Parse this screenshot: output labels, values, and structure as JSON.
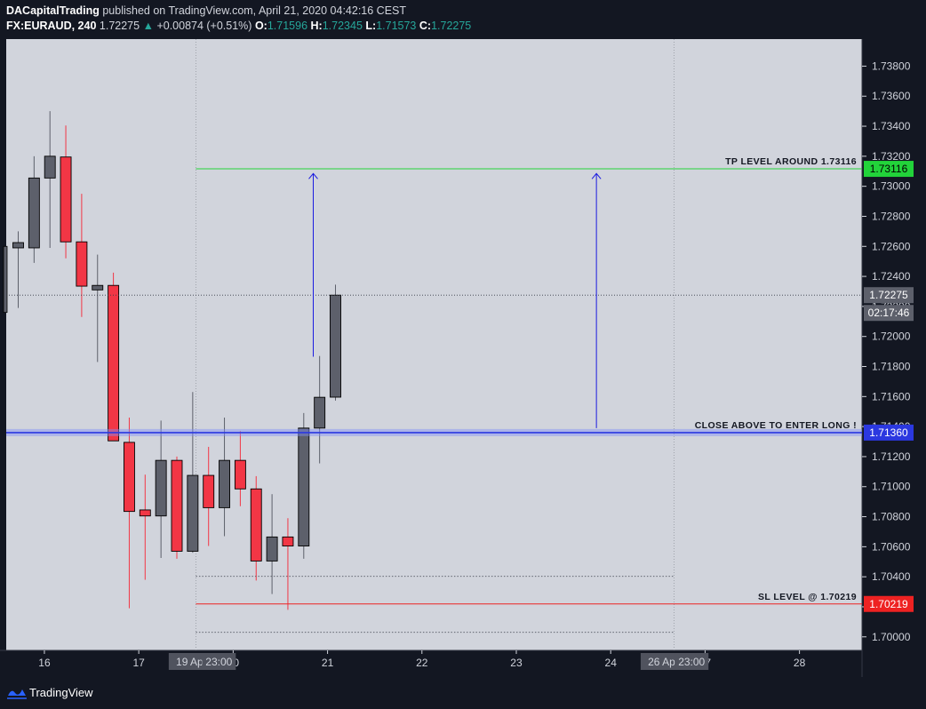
{
  "header": {
    "author": "DACapitalTrading",
    "published_text": "published on TradingView.com, April 21, 2020 04:42:16 CEST",
    "symbol": "FX:EURAUD, 240",
    "last": "1.72275",
    "change": "+0.00874 (+0.51%)",
    "o_label": "O:",
    "o_value": "1.71596",
    "h_label": "H:",
    "h_value": "1.72345",
    "l_label": "L:",
    "l_value": "1.71573",
    "c_label": "C:",
    "c_value": "1.72275"
  },
  "chart_data": {
    "type": "candlestick",
    "ylim": [
      1.6991,
      1.7398
    ],
    "y_ticks": [
      "1.70000",
      "1.70200",
      "1.70400",
      "1.70600",
      "1.70800",
      "1.71000",
      "1.71200",
      "1.71400",
      "1.71600",
      "1.71800",
      "1.72000",
      "1.72200",
      "1.72400",
      "1.72600",
      "1.72800",
      "1.73000",
      "1.73200",
      "1.73400",
      "1.73600",
      "1.73800"
    ],
    "x_ticks": [
      "16",
      "17",
      "20",
      "21",
      "22",
      "23",
      "24",
      "27",
      "28"
    ],
    "x_tick_slots": [
      1.65,
      7.6,
      13.55,
      19.5,
      25.45,
      31.4,
      37.35,
      43.3,
      49.25
    ],
    "x_highlight_labels": [
      {
        "label": "19 Apr '20",
        "slot": 11.45
      },
      {
        "label": "23:00",
        "slot": 12.65
      },
      {
        "label": "26 Apr '20",
        "slot": 41.2
      },
      {
        "label": "23:00",
        "slot": 42.45
      }
    ],
    "candles": [
      {
        "o": 1.7259,
        "h": 1.727,
        "l": 1.7219,
        "c": 1.72625
      },
      {
        "o": 1.7259,
        "h": 1.732,
        "l": 1.7249,
        "c": 1.73055
      },
      {
        "o": 1.73055,
        "h": 1.735,
        "l": 1.7259,
        "c": 1.732
      },
      {
        "o": 1.73195,
        "h": 1.73405,
        "l": 1.7252,
        "c": 1.7263
      },
      {
        "o": 1.7263,
        "h": 1.7295,
        "l": 1.7213,
        "c": 1.72335
      },
      {
        "o": 1.7231,
        "h": 1.72545,
        "l": 1.7183,
        "c": 1.7234
      },
      {
        "o": 1.7234,
        "h": 1.72425,
        "l": 1.7131,
        "c": 1.71305
      },
      {
        "o": 1.71295,
        "h": 1.7146,
        "l": 1.7019,
        "c": 1.70835
      },
      {
        "o": 1.70845,
        "h": 1.7108,
        "l": 1.7038,
        "c": 1.70805
      },
      {
        "o": 1.70805,
        "h": 1.7144,
        "l": 1.70525,
        "c": 1.71175
      },
      {
        "o": 1.71175,
        "h": 1.712,
        "l": 1.7052,
        "c": 1.7057
      },
      {
        "o": 1.7057,
        "h": 1.7163,
        "l": 1.7056,
        "c": 1.71075
      },
      {
        "o": 1.71075,
        "h": 1.71265,
        "l": 1.70605,
        "c": 1.7086
      },
      {
        "o": 1.7086,
        "h": 1.7146,
        "l": 1.7067,
        "c": 1.71175
      },
      {
        "o": 1.71175,
        "h": 1.7137,
        "l": 1.7087,
        "c": 1.70985
      },
      {
        "o": 1.70985,
        "h": 1.7107,
        "l": 1.70375,
        "c": 1.70505
      },
      {
        "o": 1.70505,
        "h": 1.7095,
        "l": 1.70285,
        "c": 1.70665
      },
      {
        "o": 1.70665,
        "h": 1.7079,
        "l": 1.7018,
        "c": 1.70605
      },
      {
        "o": 1.70605,
        "h": 1.7149,
        "l": 1.7052,
        "c": 1.7139
      },
      {
        "o": 1.7139,
        "h": 1.7187,
        "l": 1.71155,
        "c": 1.71595
      },
      {
        "o": 1.71596,
        "h": 1.72345,
        "l": 1.71573,
        "c": 1.72275
      }
    ],
    "levels": [
      {
        "name": "tp",
        "price": 1.73116,
        "label": "TP LEVEL AROUND 1.73116",
        "tag": "1.73116",
        "color": "#22d33a",
        "tag_text_color": "#000000",
        "start_slot": 11.2
      },
      {
        "name": "entry",
        "price": 1.7136,
        "label": "CLOSE ABOVE TO ENTER LONG !",
        "tag": "1.71360",
        "color": "#2b38e0",
        "tag_text_color": "#ffffff",
        "start_slot": 0
      },
      {
        "name": "sl",
        "price": 1.70219,
        "label": "SL LEVEL @ 1.70219",
        "tag": "1.70219",
        "color": "#ee2222",
        "tag_text_color": "#ffffff",
        "start_slot": 11.2
      }
    ],
    "current_price": {
      "tag": "1.72275",
      "countdown": "02:17:46",
      "price": 1.72275
    },
    "range_lines": [
      {
        "price": 1.70403,
        "from_slot": 11.2,
        "to_slot": 41.35
      },
      {
        "price": 1.7003,
        "from_slot": 11.2,
        "to_slot": 41.35
      }
    ],
    "arrows": [
      {
        "slot": 18.6,
        "from": 1.71865,
        "to": 1.73085
      },
      {
        "slot": 36.45,
        "from": 1.7139,
        "to": 1.73085
      }
    ],
    "vertical_separators": [
      11.2,
      41.35
    ],
    "colors": {
      "up": "#5d606b",
      "down": "#f23645",
      "background": "#d1d4dc",
      "axis_bg": "#131722",
      "axis_text": "#d1d4dc"
    }
  },
  "footer": {
    "brand": "TradingView"
  }
}
